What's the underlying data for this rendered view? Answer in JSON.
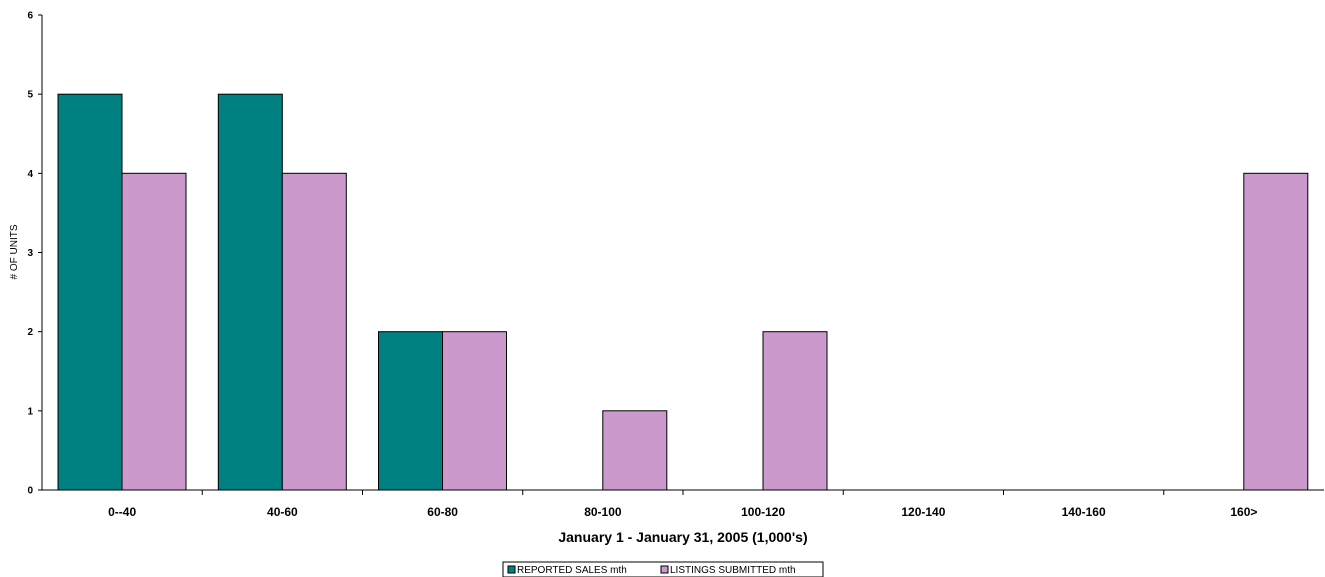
{
  "chart_data": {
    "type": "bar",
    "xlabel": "January 1 - January 31, 2005 (1,000's)",
    "ylabel": "# OF UNITS",
    "ylim": [
      0,
      6
    ],
    "yticks": [
      0,
      1,
      2,
      3,
      4,
      5,
      6
    ],
    "categories": [
      "0--40",
      "40-60",
      "60-80",
      "80-100",
      "100-120",
      "120-140",
      "140-160",
      "160>"
    ],
    "series": [
      {
        "name": "REPORTED SALES mth",
        "color": "#008080",
        "values": [
          5,
          5,
          2,
          0,
          0,
          0,
          0,
          0
        ]
      },
      {
        "name": "LISTINGS SUBMITTED mth",
        "color": "#CC99CC",
        "values": [
          4,
          4,
          2,
          1,
          2,
          0,
          0,
          4
        ]
      }
    ],
    "legend_position": "bottom-center",
    "grid": false
  }
}
